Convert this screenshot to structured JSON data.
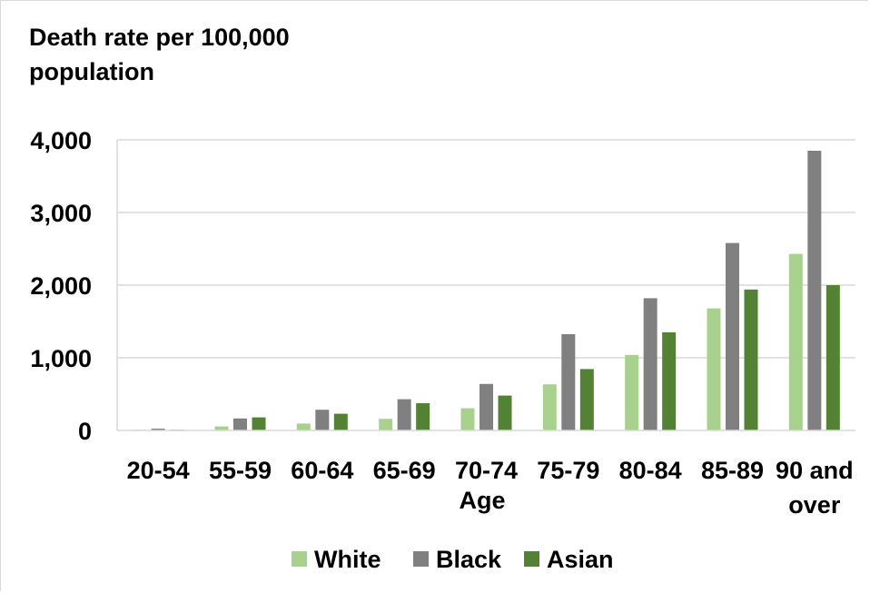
{
  "chart_data": {
    "type": "bar",
    "ylabel_lines": [
      "Death rate per 100,000",
      "population"
    ],
    "xlabel": "Age",
    "categories": [
      [
        "20-54"
      ],
      [
        "55-59"
      ],
      [
        "60-64"
      ],
      [
        "65-69"
      ],
      [
        "70-74"
      ],
      [
        "75-79"
      ],
      [
        "80-84"
      ],
      [
        "85-89"
      ],
      [
        "90 and",
        "over"
      ]
    ],
    "series": [
      {
        "name": "White",
        "color": "#a9d18e",
        "values": [
          10,
          55,
          95,
          160,
          305,
          635,
          1040,
          1680,
          2430
        ]
      },
      {
        "name": "Black",
        "color": "#808080",
        "values": [
          25,
          165,
          285,
          430,
          640,
          1325,
          1820,
          2580,
          3850
        ]
      },
      {
        "name": "Asian",
        "color": "#548235",
        "values": [
          10,
          180,
          230,
          375,
          480,
          845,
          1350,
          1940,
          2000
        ]
      }
    ],
    "yticks": [
      0,
      1000,
      2000,
      3000,
      4000
    ],
    "ytick_labels": [
      "0",
      "1,000",
      "2,000",
      "3,000",
      "4,000"
    ],
    "ylim": [
      0,
      4000
    ],
    "grid": true,
    "legend_position": "bottom",
    "gridline_color": "#d9d9d9"
  }
}
